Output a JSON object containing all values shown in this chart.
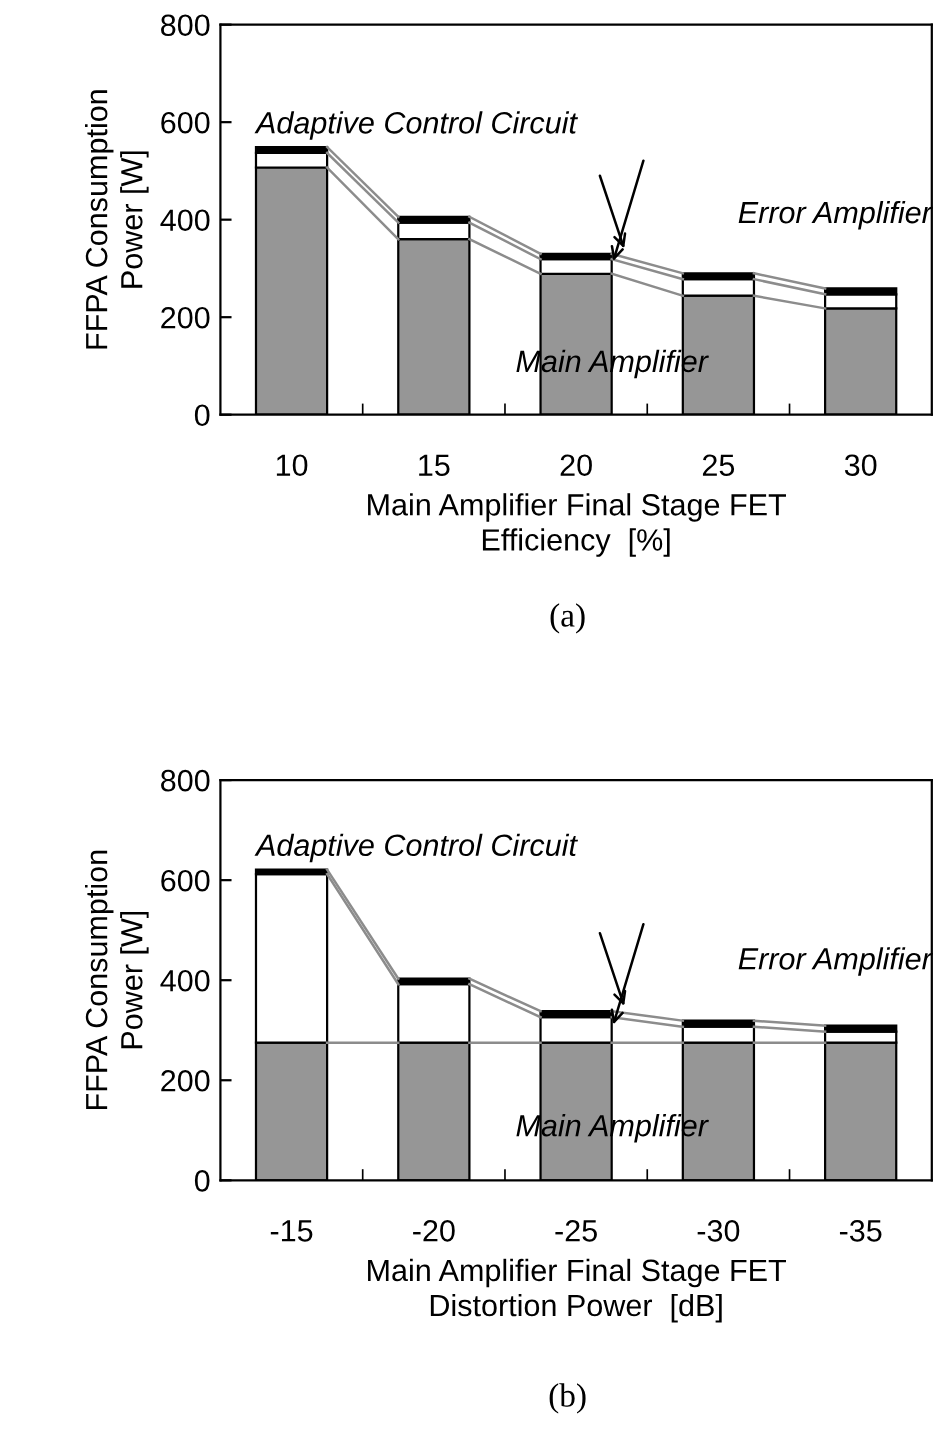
{
  "chart_data": [
    {
      "type": "bar",
      "stacked": true,
      "ylabel": "FFPA Consumption\nPower [W]",
      "xlabel": "Main Amplifier Final Stage FET\nEfficiency  [%]",
      "categories": [
        "10",
        "15",
        "20",
        "25",
        "30"
      ],
      "ylim": [
        0,
        800
      ],
      "yticks": [
        0,
        200,
        400,
        600,
        800
      ],
      "grid": false,
      "legend": false,
      "series": [
        {
          "name": "Main Amplifier",
          "color": "#969696",
          "values": [
            507,
            360,
            289,
            244,
            218
          ]
        },
        {
          "name": "Error Amplifier",
          "color": "#ffffff",
          "values": [
            30,
            34,
            30,
            34,
            29
          ]
        },
        {
          "name": "Adaptive Control Circuit",
          "color": "#000000",
          "values": [
            12,
            12,
            11,
            12,
            12
          ]
        }
      ],
      "annotations": [
        "(a)"
      ]
    },
    {
      "type": "bar",
      "stacked": true,
      "ylabel": "FFPA Consumption\nPower [W]",
      "xlabel": "Main Amplifier Final Stage FET\nDistortion Power  [dB]",
      "categories": [
        "-15",
        "-20",
        "-25",
        "-30",
        "-35"
      ],
      "ylim": [
        0,
        800
      ],
      "yticks": [
        0,
        200,
        400,
        600,
        800
      ],
      "grid": false,
      "legend": false,
      "series": [
        {
          "name": "Main Amplifier",
          "color": "#969696",
          "values": [
            275,
            275,
            275,
            275,
            275
          ]
        },
        {
          "name": "Error Amplifier",
          "color": "#ffffff",
          "values": [
            337,
            117,
            51,
            32,
            22
          ]
        },
        {
          "name": "Adaptive Control Circuit",
          "color": "#000000",
          "values": [
            9,
            11,
            12,
            12,
            12
          ]
        }
      ],
      "annotations": [
        "(b)"
      ]
    }
  ]
}
